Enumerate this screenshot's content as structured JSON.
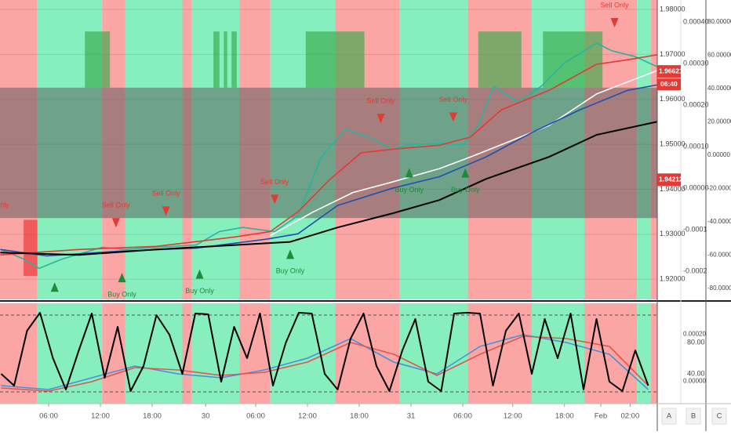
{
  "chart_data": [
    {
      "type": "line",
      "xlim": [
        -5.64,
        70.55
      ],
      "ylim": [
        1.9155,
        1.9821
      ],
      "yticks": [
        {
          "value": 1.98,
          "label": "1.98000"
        },
        {
          "value": 1.97,
          "label": "1.97000"
        },
        {
          "value": 1.96,
          "label": "1.96000"
        },
        {
          "value": 1.95,
          "label": "1.95000"
        },
        {
          "value": 1.94,
          "label": "1.94000"
        },
        {
          "value": 1.93,
          "label": "1.93000"
        },
        {
          "value": 1.92,
          "label": "1.92000"
        }
      ],
      "y2lim": [
        -0.000268,
        0.000453
      ],
      "y2ticks": [
        {
          "value": 0.0004,
          "label": "0.00040"
        },
        {
          "value": 0.0003,
          "label": "0.00030"
        },
        {
          "value": 0.0002,
          "label": "0.00020"
        },
        {
          "value": 0.0001,
          "label": "0.00010"
        },
        {
          "value": 0,
          "label": "0.00000"
        },
        -0.0001,
        -0.0002
      ],
      "y3lim": [
        -86.6,
        93.2
      ],
      "y3ticks": [
        {
          "value": 80,
          "label": "80.00000"
        },
        {
          "value": 60,
          "label": "60.00000"
        },
        {
          "value": 40,
          "label": "40.00000"
        },
        {
          "value": 20,
          "label": "20.00000"
        },
        {
          "value": 0,
          "label": "0.00000"
        },
        {
          "value": -20,
          "label": "-20.00000"
        },
        {
          "value": -40,
          "label": "-40.00000"
        },
        {
          "value": -60,
          "label": "-60.00000"
        },
        {
          "value": -80,
          "label": "-80.00000"
        }
      ],
      "grid": true,
      "bands": [
        {
          "x": [
            -5.64,
            -1.3
          ],
          "color": "#fba5a5"
        },
        {
          "x": [
            -1.3,
            6.2
          ],
          "color": "#86efbd"
        },
        {
          "x": [
            6.2,
            8.9
          ],
          "color": "#fba5a5"
        },
        {
          "x": [
            8.9,
            15.5
          ],
          "color": "#86efbd"
        },
        {
          "x": [
            15.5,
            16.6
          ],
          "color": "#fba5a5"
        },
        {
          "x": [
            16.6,
            22.1
          ],
          "color": "#86efbd"
        },
        {
          "x": [
            22.1,
            25.7
          ],
          "color": "#fba5a5"
        },
        {
          "x": [
            25.7,
            33.2
          ],
          "color": "#86efbd"
        },
        {
          "x": [
            33.2,
            40.7
          ],
          "color": "#fba5a5"
        },
        {
          "x": [
            40.7,
            48.6
          ],
          "color": "#86efbd"
        },
        {
          "x": [
            48.6,
            56
          ],
          "color": "#fba5a5"
        },
        {
          "x": [
            56,
            62.1
          ],
          "color": "#86efbd"
        },
        {
          "x": [
            62.1,
            68.2
          ],
          "color": "#fba5a5"
        },
        {
          "x": [
            68.2,
            69.8
          ],
          "color": "#86efbd"
        },
        {
          "x": [
            69.8,
            70.55
          ],
          "color": "#fba5a5"
        }
      ],
      "zones": [
        {
          "x": [
            4.2,
            7.1
          ],
          "y": [
            1.9626,
            1.9751
          ],
          "color": "#3aa84a"
        },
        {
          "x": [
            19.1,
            19.8
          ],
          "y": [
            1.9626,
            1.9751
          ],
          "color": "#3aa84a"
        },
        {
          "x": [
            20.3,
            20.7
          ],
          "y": [
            1.9626,
            1.9751
          ],
          "color": "#3aa84a"
        },
        {
          "x": [
            21.2,
            21.8
          ],
          "y": [
            1.9626,
            1.9751
          ],
          "color": "#3aa84a"
        },
        {
          "x": [
            29.8,
            36.6
          ],
          "y": [
            1.9626,
            1.9751
          ],
          "color": "#3aa84a"
        },
        {
          "x": [
            49.8,
            54.8
          ],
          "y": [
            1.9626,
            1.9751
          ],
          "color": "#3aa84a"
        },
        {
          "x": [
            57.3,
            64.2
          ],
          "y": [
            1.9626,
            1.9751
          ],
          "color": "#3aa84a"
        },
        {
          "x": [
            -2.9,
            -1.3
          ],
          "y": [
            1.9207,
            1.9332
          ],
          "color": "#f03030"
        }
      ],
      "shaded_range": [
        1.9336,
        1.9626
      ],
      "series": [
        {
          "color": "#26b5a0",
          "x": [
            -5.6,
            -2.9,
            -1.1,
            1.6,
            6.2,
            8.9,
            12.5,
            17.1,
            19.8,
            22.5,
            26.2,
            28.9,
            31.6,
            34.4,
            37.1,
            39.8,
            41.6,
            45.3,
            48,
            49.8,
            51.6,
            54.4,
            57.1,
            59.8,
            63.5,
            65.3,
            68,
            70.5
          ],
          "values": [
            1.9266,
            1.9245,
            1.9224,
            1.9245,
            1.9271,
            1.9266,
            1.9271,
            1.9276,
            1.9306,
            1.9315,
            1.9306,
            1.9341,
            1.9472,
            1.9533,
            1.9516,
            1.9489,
            1.9498,
            1.9503,
            1.9498,
            1.9542,
            1.9629,
            1.9594,
            1.9629,
            1.9681,
            1.9725,
            1.9708,
            1.9695,
            1.9673
          ]
        },
        {
          "color": "#e53935",
          "x": [
            -5.6,
            3.5,
            12.5,
            21.6,
            25.7,
            28.9,
            32.5,
            36.2,
            39.8,
            45.3,
            48.9,
            52.5,
            58,
            63.5,
            67.1,
            70.5
          ],
          "values": [
            1.9254,
            1.9266,
            1.9273,
            1.9294,
            1.9306,
            1.935,
            1.942,
            1.9481,
            1.9489,
            1.9498,
            1.9516,
            1.9577,
            1.962,
            1.9678,
            1.9688,
            1.9699
          ]
        },
        {
          "color": "#ffffff",
          "x": [
            25.7,
            30.7,
            35.3,
            39.8,
            45.3,
            48.9,
            53.5,
            58,
            63.5,
            70.5
          ],
          "values": [
            1.9297,
            1.935,
            1.9393,
            1.9416,
            1.9446,
            1.9472,
            1.9507,
            1.9542,
            1.9612,
            1.9664
          ]
        },
        {
          "color": "#1f4fb0",
          "x": [
            -5.6,
            -0.2,
            8,
            17.1,
            25.3,
            28.9,
            33.5,
            39.8,
            45.3,
            50.7,
            56.2,
            61.6,
            67.1,
            70.5
          ],
          "values": [
            1.9266,
            1.9252,
            1.9262,
            1.9269,
            1.9289,
            1.9301,
            1.9364,
            1.9402,
            1.9428,
            1.9472,
            1.9528,
            1.9577,
            1.962,
            1.9632
          ]
        },
        {
          "color": "#000000",
          "x": [
            -5.6,
            3.5,
            12.5,
            21.6,
            28,
            33.5,
            39.8,
            45.3,
            50.7,
            58,
            63.5,
            70.5
          ],
          "values": [
            1.9259,
            1.9254,
            1.9266,
            1.9276,
            1.9283,
            1.9315,
            1.9346,
            1.9376,
            1.9423,
            1.9472,
            1.9521,
            1.955
          ]
        }
      ],
      "sell_signals": [
        {
          "x": -6.2,
          "y": 1.9315,
          "label": "Sell Only"
        },
        {
          "x": 7.8,
          "y": 1.9315,
          "label": "Sell Only"
        },
        {
          "x": 13.6,
          "y": 1.9341,
          "label": "Sell Only"
        },
        {
          "x": 26.2,
          "y": 1.9367,
          "label": "Sell Only"
        },
        {
          "x": 38.5,
          "y": 1.9547,
          "label": "Sell Only"
        },
        {
          "x": 46.9,
          "y": 1.955,
          "label": "Sell Only"
        },
        {
          "x": 65.6,
          "y": 1.976,
          "label": "Sell Only"
        }
      ],
      "buy_signals": [
        {
          "x": 0.7,
          "y": 1.9193
        },
        {
          "x": 8.5,
          "y": 1.9214,
          "label": "Buy Only"
        },
        {
          "x": 17.5,
          "y": 1.9222,
          "label": "Buy Only"
        },
        {
          "x": 28,
          "y": 1.9266,
          "label": "Buy Only"
        },
        {
          "x": 41.8,
          "y": 1.9447,
          "label": "Buy Only"
        },
        {
          "x": 48.3,
          "y": 1.9447,
          "label": "Buy Only"
        }
      ],
      "price_labels": [
        {
          "value": 1.96621,
          "color": "#e53935"
        },
        {
          "value": 1.94212,
          "color": "#e53935"
        }
      ],
      "countdown": "06:40"
    },
    {
      "type": "line",
      "xlim": [
        -5.64,
        70.55
      ],
      "ylim": [
        2,
        130
      ],
      "yticks": [
        {
          "value": 80,
          "label": "80.00"
        },
        {
          "value": 40,
          "label": "40.00"
        }
      ],
      "y2lim": [
        -9.33e-05,
        0.000333
      ],
      "y2ticks": [
        {
          "value": 0.0002,
          "label": "0.00020"
        },
        {
          "value": 0,
          "label": "0.00000"
        }
      ],
      "levels": [
        115,
        17
      ],
      "xticks": [
        {
          "value": 0,
          "label": "06:00"
        },
        {
          "value": 6,
          "label": "12:00"
        },
        {
          "value": 12,
          "label": "18:00"
        },
        {
          "value": 18.2,
          "label": "30"
        },
        {
          "value": 24,
          "label": "06:00"
        },
        {
          "value": 30,
          "label": "12:00"
        },
        {
          "value": 36,
          "label": "18:00"
        },
        {
          "value": 42,
          "label": "31"
        },
        {
          "value": 48,
          "label": "06:00"
        },
        {
          "value": 53.8,
          "label": "12:00"
        },
        {
          "value": 59.8,
          "label": "18:00"
        },
        {
          "value": 64,
          "label": "Feb"
        },
        {
          "value": 67.4,
          "label": "02:00"
        }
      ],
      "series": [
        {
          "color": "#4a90d9",
          "x": [
            -5.5,
            0,
            5,
            10,
            15,
            20,
            25,
            30,
            35,
            40,
            45,
            50,
            55,
            60,
            65,
            69.5
          ],
          "values": [
            25,
            20,
            35,
            50,
            40,
            35,
            45,
            60,
            85,
            55,
            40,
            75,
            90,
            80,
            65,
            20
          ]
        },
        {
          "color": "#e2574c",
          "x": [
            -5.5,
            0,
            5,
            10,
            15,
            20,
            25,
            30,
            35,
            40,
            45,
            50,
            55,
            60,
            65,
            69.5
          ],
          "values": [
            22,
            18,
            30,
            48,
            45,
            38,
            42,
            55,
            80,
            65,
            38,
            65,
            88,
            85,
            75,
            25
          ]
        },
        {
          "color": "#000000",
          "x": [
            -5.5,
            -4,
            -2.5,
            -1,
            0.5,
            2,
            3.5,
            5,
            6.5,
            8,
            9.5,
            11,
            12.5,
            14,
            15.5,
            17,
            18.5,
            20,
            21.5,
            23,
            24.5,
            26,
            27.5,
            29,
            30.5,
            32,
            33.5,
            35,
            36.5,
            38,
            39.5,
            41,
            42.5,
            44,
            45.5,
            47,
            48.5,
            50,
            51.5,
            53,
            54.5,
            56,
            57.5,
            59,
            60.5,
            62,
            63.5,
            65,
            66.5,
            68,
            69.5
          ],
          "values": [
            40,
            25,
            95,
            118,
            60,
            20,
            70,
            117,
            35,
            100,
            18,
            50,
            115,
            90,
            40,
            117,
            116,
            30,
            100,
            60,
            117,
            25,
            80,
            118,
            117,
            40,
            20,
            85,
            117,
            50,
            18,
            70,
            110,
            30,
            18,
            117,
            118,
            117,
            25,
            95,
            117,
            40,
            110,
            60,
            117,
            20,
            110,
            30,
            18,
            70,
            25
          ]
        }
      ]
    }
  ],
  "toolbar": [
    "A",
    "B",
    "C"
  ]
}
